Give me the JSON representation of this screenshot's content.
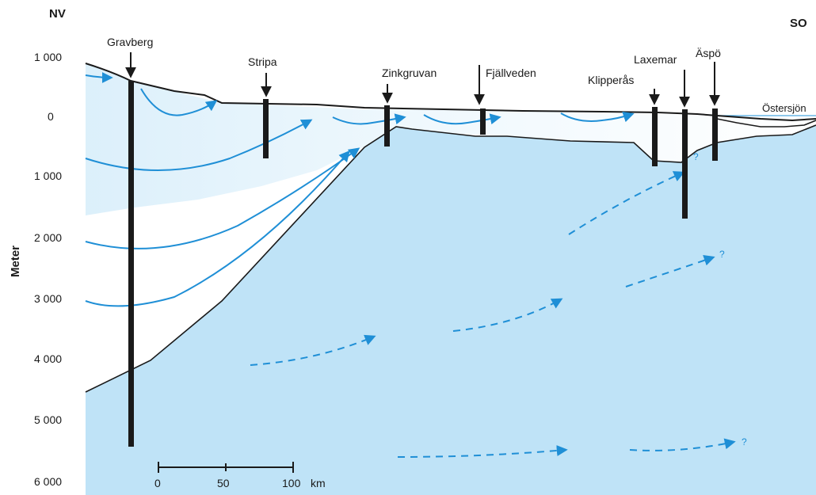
{
  "directions": {
    "left": "NV",
    "right": "SO"
  },
  "axis": {
    "title": "Meter",
    "ticks": [
      "1 000",
      "0",
      "1 000",
      "2 000",
      "3 000",
      "4 000",
      "5 000",
      "6 000"
    ]
  },
  "sites": {
    "gravberg": "Gravberg",
    "stripa": "Stripa",
    "zinkgruvan": "Zinkgruvan",
    "fjallveden": "Fjällveden",
    "klipperas": "Klipperås",
    "laxemar": "Laxemar",
    "aspo": "Äspö"
  },
  "sea_label": "Östersjön",
  "scale_bar": {
    "ticks": [
      "0",
      "50",
      "100"
    ],
    "unit": "km"
  },
  "question_mark": "?",
  "colors": {
    "deep_water": "#bfe3f7",
    "flow_arrow": "#1f8fd6",
    "line": "#1a1a1a",
    "sea_line": "#4aa8e0"
  }
}
